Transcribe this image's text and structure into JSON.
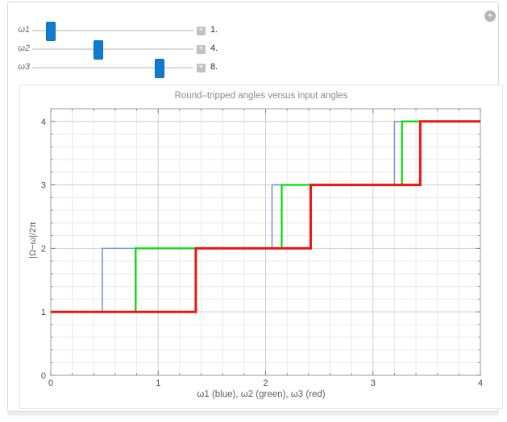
{
  "app": {
    "options_button_glyph": "+",
    "expand_button_glyph": "+"
  },
  "controls": {
    "sliders": [
      {
        "label": "ω1",
        "value_display": "1.",
        "fraction": 0.09
      },
      {
        "label": "ω2",
        "value_display": "4.",
        "fraction": 0.4
      },
      {
        "label": "ω3",
        "value_display": "8.",
        "fraction": 0.8
      }
    ],
    "thumb_color": "#0f7ccf",
    "track_color": "#d9d9d9"
  },
  "chart_data": {
    "type": "line",
    "subtype": "step",
    "title": "Round–tripped angles versus input angles",
    "xlabel": "ω1 (blue), ω2 (green), ω3 (red)",
    "ylabel": "|Ω−ω|/2π",
    "xlim": [
      0,
      4
    ],
    "ylim": [
      0,
      4.2
    ],
    "xticks": [
      0,
      1,
      2,
      3,
      4
    ],
    "yticks": [
      0,
      1,
      2,
      3,
      4
    ],
    "minor_step": 0.2,
    "grid": true,
    "legend_position": "none",
    "frame_color": "#9b9b9b",
    "major_grid_color": "#cdcdcd",
    "minor_grid_color": "#e9e9e9",
    "tick_color": "#808080",
    "tick_label_color": "#4d4d4d",
    "series": [
      {
        "name": "ω1",
        "color_role": "blue",
        "color": "#7b97cf",
        "width": 1.6,
        "step_x": [
          0.48,
          2.06,
          3.2
        ],
        "levels": [
          1,
          2,
          3,
          4
        ]
      },
      {
        "name": "ω2",
        "color_role": "green",
        "color": "#00dd00",
        "width": 2.2,
        "step_x": [
          0.79,
          2.15,
          3.27
        ],
        "levels": [
          1,
          2,
          3,
          4
        ]
      },
      {
        "name": "ω3",
        "color_role": "red",
        "color": "#ee1414",
        "width": 3.0,
        "step_x": [
          1.35,
          2.42,
          3.44
        ],
        "levels": [
          1,
          2,
          3,
          4
        ]
      }
    ]
  }
}
